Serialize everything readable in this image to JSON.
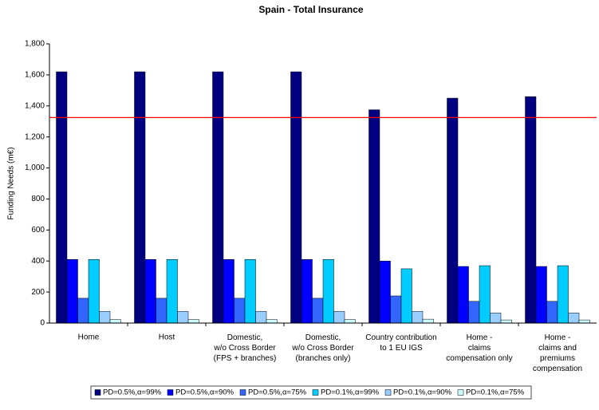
{
  "chart_data": {
    "type": "bar",
    "title": "Spain - Total Insurance",
    "y_label": "Funding Needs (m€)",
    "categories": [
      "Home",
      "Host",
      "Domestic,\nw/o Cross Border\n(FPS + branches)",
      "Domestic,\nw/o Cross Border\n(branches only)",
      "Country contribution\nto 1 EU IGS",
      "Home -\nclaims\ncompensation only",
      "Home -\nclaims and\npremiums\ncompensation"
    ],
    "series": [
      {
        "name": "PD=0.5%,α=99%",
        "color": "#000080",
        "values": [
          1620,
          1620,
          1620,
          1620,
          1375,
          1450,
          1460
        ]
      },
      {
        "name": "PD=0.5%,α=90%",
        "color": "#0000ff",
        "values": [
          410,
          410,
          410,
          410,
          400,
          365,
          365
        ]
      },
      {
        "name": "PD=0.5%,α=75%",
        "color": "#3366ff",
        "values": [
          160,
          160,
          160,
          160,
          175,
          140,
          140
        ]
      },
      {
        "name": "PD=0.1%,α=99%",
        "color": "#00ccff",
        "values": [
          410,
          410,
          410,
          410,
          350,
          370,
          370
        ]
      },
      {
        "name": "PD=0.1%,α=90%",
        "color": "#99ccff",
        "values": [
          75,
          75,
          75,
          75,
          75,
          65,
          65
        ]
      },
      {
        "name": "PD=0.1%,α=75%",
        "color": "#ccffff",
        "values": [
          22,
          22,
          22,
          22,
          25,
          20,
          20
        ]
      }
    ],
    "reference_line": {
      "value": 1325,
      "color": "#ff0000"
    },
    "ylim": [
      0,
      1800
    ],
    "yticks": [
      0,
      200,
      400,
      600,
      800,
      {
        "value": 1000,
        "label": "1,000"
      },
      {
        "value": 1200,
        "label": "1,200"
      },
      {
        "value": 1400,
        "label": "1,400"
      },
      {
        "value": 1600,
        "label": "1,600"
      },
      {
        "value": 1800,
        "label": "1,800"
      }
    ],
    "legend": "bottom"
  }
}
